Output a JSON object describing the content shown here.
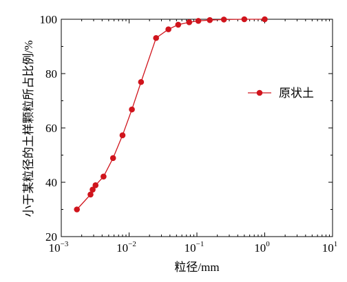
{
  "chart_data": {
    "type": "line",
    "x_scale": "log",
    "xlabel": "粒径/mm",
    "ylabel": "小于某粒径的土样颗粒所占比例/%",
    "xlim": [
      0.001,
      10
    ],
    "ylim": [
      20,
      100
    ],
    "x_ticks": [
      {
        "base": "10",
        "exp": "−3",
        "value": 0.001
      },
      {
        "base": "10",
        "exp": "−2",
        "value": 0.01
      },
      {
        "base": "10",
        "exp": "−1",
        "value": 0.1
      },
      {
        "base": "10",
        "exp": "0",
        "value": 1
      },
      {
        "base": "10",
        "exp": "1",
        "value": 10
      }
    ],
    "y_ticks": [
      {
        "label": "20",
        "value": 20
      },
      {
        "label": "40",
        "value": 40
      },
      {
        "label": "60",
        "value": 60
      },
      {
        "label": "80",
        "value": 80
      },
      {
        "label": "100",
        "value": 100
      }
    ],
    "grid": false,
    "legend_position": "right-middle",
    "series": [
      {
        "name": "原状土",
        "color": "#d0141c",
        "x": [
          0.0017,
          0.0027,
          0.0029,
          0.0032,
          0.0042,
          0.0058,
          0.008,
          0.011,
          0.015,
          0.025,
          0.038,
          0.053,
          0.077,
          0.105,
          0.155,
          0.25,
          0.5,
          1.0
        ],
        "y": [
          30.0,
          35.5,
          37.3,
          38.9,
          42.1,
          48.9,
          57.3,
          66.8,
          76.9,
          93.1,
          96.3,
          98.0,
          98.9,
          99.4,
          99.7,
          99.9,
          100.0,
          100.0
        ]
      }
    ]
  }
}
